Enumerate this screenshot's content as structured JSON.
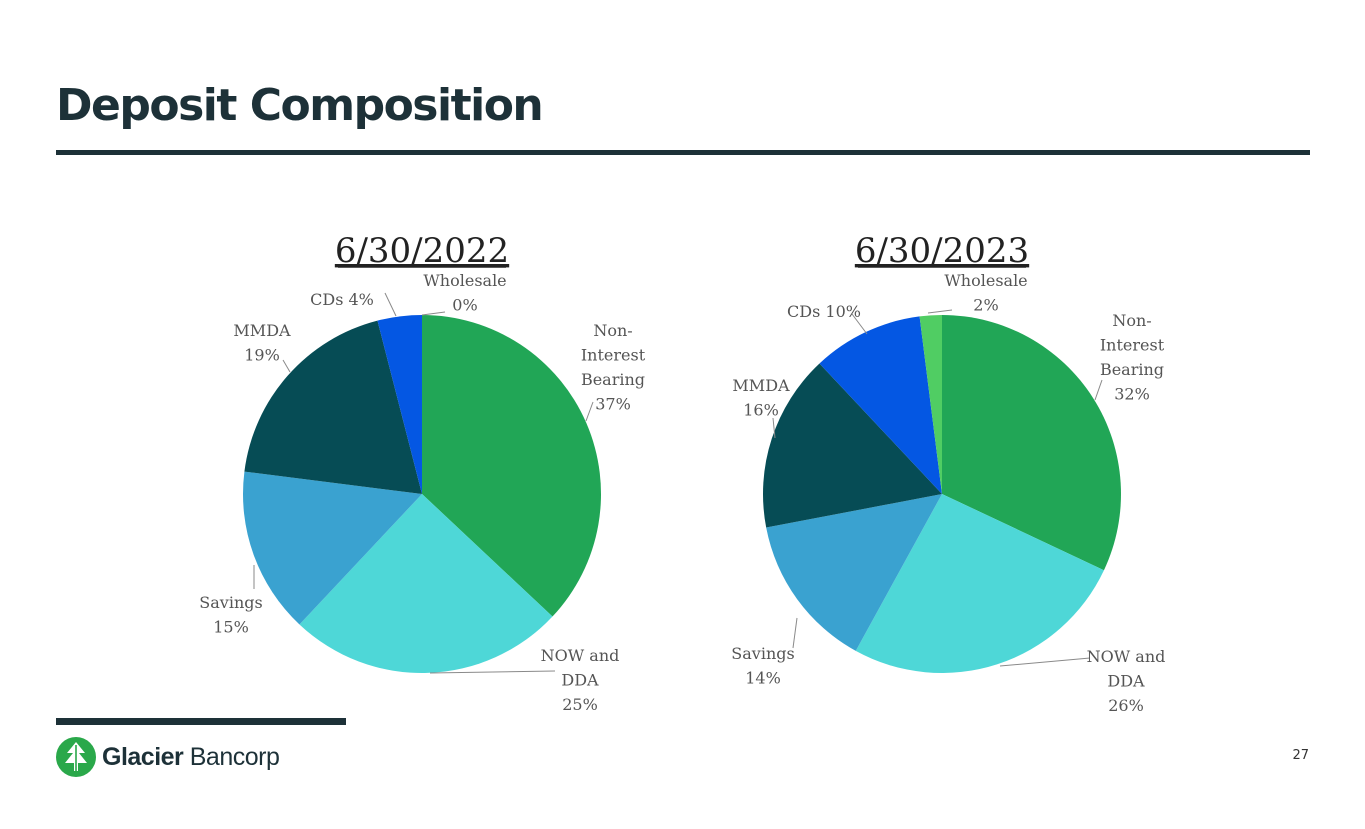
{
  "slide": {
    "title": "Deposit Composition",
    "page_number": "27"
  },
  "logo": {
    "brand_bold": "Glacier",
    "brand_light": "Bancorp",
    "icon": "glacier-tree-icon",
    "color": "#2aa84a"
  },
  "chart_data": [
    {
      "type": "pie",
      "title": "6/30/2022",
      "categories": [
        "Non-Interest Bearing",
        "NOW and DDA",
        "Savings",
        "MMDA",
        "CDs",
        "Wholesale"
      ],
      "values": [
        37,
        25,
        15,
        19,
        4,
        0
      ],
      "labels": [
        [
          "Non-",
          "Interest",
          "Bearing",
          "37%"
        ],
        [
          "NOW and",
          "DDA",
          "25%"
        ],
        [
          "Savings",
          "15%"
        ],
        [
          "MMDA",
          "19%"
        ],
        [
          "CDs 4%"
        ],
        [
          "Wholesale",
          "0%"
        ]
      ],
      "colors": [
        "#21a656",
        "#4ed7d7",
        "#3aa2d0",
        "#064c55",
        "#0457e3",
        "#50cd63"
      ]
    },
    {
      "type": "pie",
      "title": "6/30/2023",
      "categories": [
        "Non-Interest Bearing",
        "NOW and DDA",
        "Savings",
        "MMDA",
        "CDs",
        "Wholesale"
      ],
      "values": [
        32,
        26,
        14,
        16,
        10,
        2
      ],
      "labels": [
        [
          "Non-",
          "Interest",
          "Bearing",
          "32%"
        ],
        [
          "NOW and",
          "DDA",
          "26%"
        ],
        [
          "Savings",
          "14%"
        ],
        [
          "MMDA",
          "16%"
        ],
        [
          "CDs 10%"
        ],
        [
          "Wholesale",
          "2%"
        ]
      ],
      "colors": [
        "#21a656",
        "#4ed7d7",
        "#3aa2d0",
        "#064c55",
        "#0457e3",
        "#50cd63"
      ]
    }
  ]
}
